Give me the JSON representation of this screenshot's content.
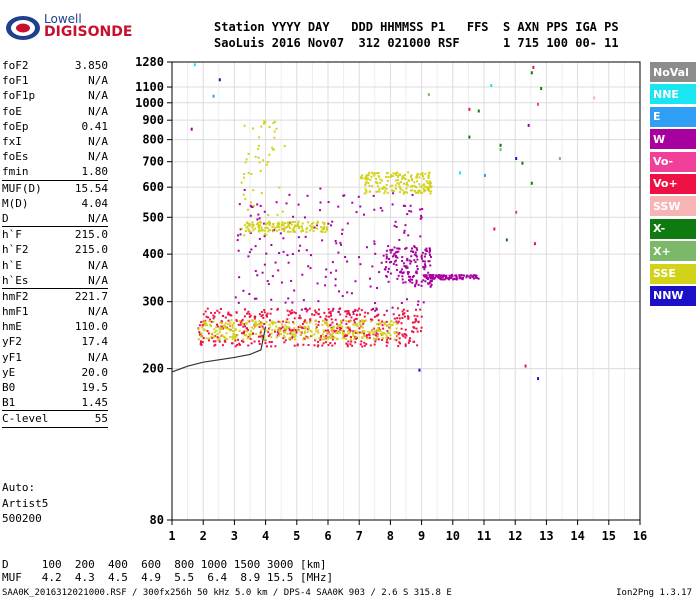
{
  "brand": {
    "line1": "Lowell",
    "line2": "DIGISONDE"
  },
  "header": {
    "line1": "Station YYYY DAY   DDD HHMMSS P1   FFS  S AXN PPS IGA PS",
    "line2": "SaoLuis 2016 Nov07  312 021000 RSF      1 715 100 00- 11"
  },
  "params": [
    {
      "key": "foF2",
      "value": "3.850"
    },
    {
      "key": "foF1",
      "value": "N/A"
    },
    {
      "key": "foF1p",
      "value": "N/A"
    },
    {
      "key": "foE",
      "value": "N/A"
    },
    {
      "key": "foEp",
      "value": "0.41"
    },
    {
      "key": "fxI",
      "value": "N/A"
    },
    {
      "key": "foEs",
      "value": "N/A"
    },
    {
      "key": "fmin",
      "value": "1.80",
      "sep": true
    },
    {
      "key": "MUF(D)",
      "value": "15.54"
    },
    {
      "key": "M(D)",
      "value": "4.04"
    },
    {
      "key": "D",
      "value": "N/A",
      "sep": true
    },
    {
      "key": "h`F",
      "value": "215.0"
    },
    {
      "key": "h`F2",
      "value": "215.0"
    },
    {
      "key": "h`E",
      "value": "N/A"
    },
    {
      "key": "h`Es",
      "value": "N/A",
      "sep": true
    },
    {
      "key": "hmF2",
      "value": "221.7"
    },
    {
      "key": "hmF1",
      "value": "N/A"
    },
    {
      "key": "hmE",
      "value": "110.0"
    },
    {
      "key": "yF2",
      "value": "17.4"
    },
    {
      "key": "yF1",
      "value": "N/A"
    },
    {
      "key": "yE",
      "value": "20.0"
    },
    {
      "key": "B0",
      "value": "19.5"
    },
    {
      "key": "B1",
      "value": "1.45",
      "sep": true
    },
    {
      "key": "C-level",
      "value": "55",
      "sep": true
    }
  ],
  "auto": {
    "line1": "Auto:",
    "line2": "Artist5",
    "line3": "500200"
  },
  "legend": [
    {
      "label": "NoVal",
      "color": "#8c8c8c"
    },
    {
      "label": "NNE",
      "color": "#19e6f0"
    },
    {
      "label": "E",
      "color": "#2f9ef5"
    },
    {
      "label": "W",
      "color": "#a8009f"
    },
    {
      "label": "Vo-",
      "color": "#f0409a"
    },
    {
      "label": "Vo+",
      "color": "#ee1144"
    },
    {
      "label": "SSW",
      "color": "#f7b4b4"
    },
    {
      "label": "X-",
      "color": "#0f7a0f"
    },
    {
      "label": "X+",
      "color": "#7bb86a"
    },
    {
      "label": "SSE",
      "color": "#d2d21a"
    },
    {
      "label": "NNW",
      "color": "#1a10c8"
    }
  ],
  "table": {
    "d_label": "D",
    "d_values": "100  200  400  600  800 1000 1500 3000 [km]",
    "muf_label": "MUF",
    "muf_values": "4.2  4.3  4.5  4.9  5.5  6.4  8.9 15.5 [MHz]"
  },
  "footer": {
    "left": "SAA0K_2016312021000.RSF / 300fx256h 50 kHz 5.0 km / DPS-4 SAA0K 903 / 2.6 S 315.8 E",
    "right": "Ion2Png 1.3.17"
  },
  "chart_data": {
    "type": "scatter",
    "title": "",
    "xlabel": "",
    "ylabel": "",
    "x_ticks": [
      1,
      2,
      3,
      4,
      5,
      6,
      7,
      8,
      9,
      10,
      11,
      12,
      13,
      14,
      15,
      16
    ],
    "y_ticks": [
      80,
      200,
      300,
      400,
      500,
      600,
      700,
      800,
      900,
      1000,
      1100,
      1280
    ],
    "xlim": [
      1,
      16
    ],
    "y_scale": "log",
    "ylim": [
      80,
      1280
    ],
    "grid": true,
    "legend_position": "right",
    "trace": {
      "name": "",
      "x": [
        1.0,
        1.5,
        2.0,
        2.5,
        3.0,
        3.5,
        3.85,
        4.0
      ],
      "y": [
        196,
        203,
        208,
        211,
        214,
        218,
        224,
        258
      ]
    },
    "clusters": [
      {
        "color_label": "Vo+",
        "x_range": [
          1.8,
          9.0
        ],
        "y_range": [
          230,
          290
        ],
        "density": 0.9
      },
      {
        "color_label": "SSE",
        "x_range": [
          1.8,
          8.2
        ],
        "y_range": [
          240,
          270
        ],
        "density": 0.7
      },
      {
        "color_label": "W",
        "x_range": [
          3.0,
          9.1
        ],
        "y_range": [
          280,
          600
        ],
        "density": 0.4
      },
      {
        "color_label": "SSE",
        "x_range": [
          3.2,
          4.6
        ],
        "y_range": [
          450,
          900
        ],
        "density": 0.3
      },
      {
        "color_label": "SSE",
        "x_range": [
          7.0,
          9.3
        ],
        "y_range": [
          580,
          660
        ],
        "density": 0.8
      },
      {
        "color_label": "W",
        "x_range": [
          7.8,
          9.3
        ],
        "y_range": [
          330,
          420
        ],
        "density": 0.8
      },
      {
        "color_label": "SSE",
        "x_range": [
          3.3,
          6.0
        ],
        "y_range": [
          460,
          490
        ],
        "density": 0.6
      },
      {
        "color_label": "W",
        "x_range": [
          9.0,
          10.8
        ],
        "y_range": [
          345,
          355
        ],
        "density": 0.5
      }
    ],
    "sparse_points": [
      {
        "x": 1.7,
        "y": 1270,
        "color_label": "NNE"
      },
      {
        "x": 1.6,
        "y": 860,
        "color_label": "W"
      },
      {
        "x": 2.5,
        "y": 1160,
        "color_label": "NNW"
      },
      {
        "x": 2.3,
        "y": 1050,
        "color_label": "E"
      },
      {
        "x": 10.5,
        "y": 970,
        "color_label": "Vo+"
      },
      {
        "x": 10.8,
        "y": 960,
        "color_label": "X-"
      },
      {
        "x": 11.2,
        "y": 1120,
        "color_label": "NNE"
      },
      {
        "x": 11.5,
        "y": 780,
        "color_label": "X-"
      },
      {
        "x": 11.5,
        "y": 760,
        "color_label": "X+"
      },
      {
        "x": 11.3,
        "y": 470,
        "color_label": "Vo+"
      },
      {
        "x": 11.7,
        "y": 440,
        "color_label": "X-"
      },
      {
        "x": 12.0,
        "y": 720,
        "color_label": "NNW"
      },
      {
        "x": 12.2,
        "y": 700,
        "color_label": "X-"
      },
      {
        "x": 12.5,
        "y": 1210,
        "color_label": "X-"
      },
      {
        "x": 12.55,
        "y": 1250,
        "color_label": "Vo+"
      },
      {
        "x": 12.7,
        "y": 1000,
        "color_label": "Vo-"
      },
      {
        "x": 12.8,
        "y": 1100,
        "color_label": "X-"
      },
      {
        "x": 12.4,
        "y": 880,
        "color_label": "W"
      },
      {
        "x": 12.3,
        "y": 205,
        "color_label": "Vo+"
      },
      {
        "x": 12.7,
        "y": 190,
        "color_label": "NNW"
      },
      {
        "x": 13.4,
        "y": 720,
        "color_label": "X+"
      },
      {
        "x": 14.5,
        "y": 1040,
        "color_label": "SSW"
      },
      {
        "x": 12.6,
        "y": 430,
        "color_label": "Vo+"
      },
      {
        "x": 12.0,
        "y": 520,
        "color_label": "Vo-"
      },
      {
        "x": 11.0,
        "y": 650,
        "color_label": "E"
      },
      {
        "x": 10.2,
        "y": 660,
        "color_label": "NNE"
      },
      {
        "x": 8.9,
        "y": 200,
        "color_label": "NNW"
      },
      {
        "x": 9.2,
        "y": 1060,
        "color_label": "X+"
      },
      {
        "x": 10.5,
        "y": 820,
        "color_label": "X-"
      },
      {
        "x": 12.5,
        "y": 620,
        "color_label": "X-"
      }
    ]
  }
}
